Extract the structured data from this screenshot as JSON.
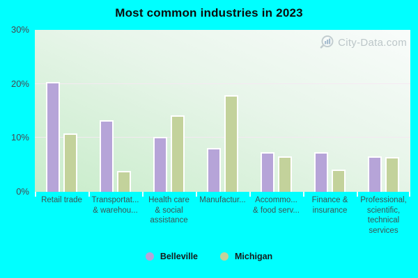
{
  "title": "Most common industries in 2023",
  "watermark": {
    "text": "City-Data.com"
  },
  "colors": {
    "page_background": "#00ffff",
    "belleville_bar": "#b6a4d8",
    "michigan_bar": "#c3d29b",
    "bar_border": "#ffffff",
    "plot_gradient_light": "#f9fcfb",
    "plot_gradient_dark": "#c8ecca",
    "gridline": "#f6e8f2"
  },
  "chart_data": {
    "type": "bar",
    "title": "Most common industries in 2023",
    "categories": [
      "Retail trade",
      "Transportation & warehousing",
      "Health care & social assistance",
      "Manufacturing",
      "Accommodation & food services",
      "Finance & insurance",
      "Professional, scientific, technical services"
    ],
    "category_display_labels": [
      "Retail trade",
      "Transportat...\n& warehou...",
      "Health care\n& social\nassistance",
      "Manufactur...",
      "Accommo...\n& food serv...",
      "Finance &\ninsurance",
      "Professional,\nscientific,\ntechnical\nservices"
    ],
    "series": [
      {
        "name": "Belleville",
        "color": "#b6a4d8",
        "values": [
          20.3,
          13.2,
          10.2,
          8.1,
          7.3,
          7.4,
          6.6
        ]
      },
      {
        "name": "Michigan",
        "color": "#c3d29b",
        "values": [
          10.8,
          3.9,
          14.2,
          17.9,
          6.6,
          4.1,
          6.4
        ]
      }
    ],
    "xlabel": "",
    "ylabel": "",
    "ylim": [
      0,
      30
    ],
    "y_ticks": [
      {
        "label": "30%",
        "value": 30
      },
      {
        "label": "20%",
        "value": 20
      },
      {
        "label": "10%",
        "value": 10
      },
      {
        "label": "0%",
        "value": 0
      }
    ],
    "gridlines": [
      10,
      20
    ],
    "grid": true,
    "legend_position": "bottom"
  }
}
